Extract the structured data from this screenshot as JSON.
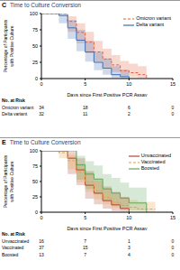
{
  "chart_data": [
    {
      "type": "step",
      "panel": "C",
      "title": "Time to Culture Conversion",
      "x_label": "Days since First Positive PCR Assay",
      "y_label": "Percentage of Participants with Positive Culture",
      "x": [
        0,
        1,
        2,
        3,
        4,
        5,
        6,
        7,
        8,
        9,
        10,
        11,
        12,
        13
      ],
      "xlim": [
        0,
        15
      ],
      "xticks": [
        0,
        5,
        10,
        15
      ],
      "ylim": [
        0,
        100
      ],
      "yticks": [
        0,
        25,
        50,
        75,
        100
      ],
      "legend": "upper right",
      "series": [
        {
          "name": "Omicron variant",
          "color": "#e2603f",
          "line_style": "dashed",
          "values": [
            100,
            100,
            100,
            88,
            71,
            56,
            41,
            30,
            21,
            12,
            9,
            6,
            0,
            null
          ],
          "ci_lower": [
            100,
            100,
            100,
            72,
            54,
            39,
            26,
            17,
            10,
            4,
            2,
            1,
            0,
            null
          ],
          "ci_upper": [
            100,
            100,
            100,
            96,
            85,
            72,
            58,
            46,
            36,
            27,
            23,
            19,
            14,
            null
          ]
        },
        {
          "name": "Delta variant",
          "color": "#3f6fb5",
          "line_style": "solid",
          "values": [
            100,
            100,
            97,
            78,
            59,
            41,
            25,
            16,
            6,
            3,
            0,
            null,
            null,
            null
          ],
          "ci_lower": [
            100,
            100,
            85,
            61,
            42,
            26,
            13,
            6,
            1,
            0,
            0,
            null,
            null,
            null
          ],
          "ci_upper": [
            100,
            100,
            100,
            90,
            75,
            58,
            41,
            31,
            19,
            14,
            0,
            null,
            null,
            null
          ]
        }
      ],
      "at_risk": {
        "title": "No. at Risk",
        "times": [
          0,
          5,
          10,
          15
        ],
        "rows": [
          {
            "name": "Omicron variant",
            "values": [
              34,
              18,
              6,
              0
            ]
          },
          {
            "name": "Delta variant",
            "values": [
              32,
              11,
              2,
              0
            ]
          }
        ]
      }
    },
    {
      "type": "step",
      "panel": "E",
      "title": "Time to Culture Conversion",
      "x_label": "Days since First Positive PCR Assay",
      "y_label": "Percentage of Participants with Positive Culture",
      "x": [
        0,
        1,
        2,
        3,
        4,
        5,
        6,
        7,
        8,
        9,
        10,
        11,
        12,
        13
      ],
      "xlim": [
        0,
        15
      ],
      "xticks": [
        0,
        5,
        10,
        15
      ],
      "ylim": [
        0,
        100
      ],
      "yticks": [
        0,
        25,
        50,
        75,
        100
      ],
      "legend": "upper right",
      "series": [
        {
          "name": "Unvaccinated",
          "color": "#b5452f",
          "line_style": "solid",
          "values": [
            100,
            100,
            100,
            88,
            69,
            44,
            31,
            19,
            12,
            6,
            0,
            null,
            null,
            null
          ],
          "ci_lower": [
            100,
            100,
            100,
            62,
            44,
            22,
            13,
            6,
            2,
            1,
            0,
            null,
            null,
            null
          ],
          "ci_upper": [
            100,
            100,
            100,
            98,
            88,
            67,
            54,
            42,
            33,
            25,
            0,
            null,
            null,
            null
          ]
        },
        {
          "name": "Vaccinated",
          "color": "#e8a040",
          "line_style": "dashed",
          "values": [
            100,
            100,
            97,
            84,
            65,
            49,
            35,
            24,
            16,
            11,
            8,
            5,
            5,
            5
          ],
          "ci_lower": [
            100,
            100,
            88,
            70,
            49,
            33,
            21,
            13,
            7,
            4,
            2,
            1,
            1,
            1
          ],
          "ci_upper": [
            100,
            100,
            100,
            93,
            79,
            65,
            51,
            39,
            30,
            24,
            20,
            17,
            17,
            17
          ]
        },
        {
          "name": "Boosted",
          "color": "#5ea85a",
          "line_style": "solid",
          "values": [
            100,
            100,
            100,
            100,
            77,
            62,
            54,
            38,
            31,
            23,
            15,
            15,
            0,
            null
          ],
          "ci_lower": [
            100,
            100,
            100,
            100,
            53,
            38,
            29,
            17,
            11,
            6,
            3,
            3,
            0,
            null
          ],
          "ci_upper": [
            100,
            100,
            100,
            100,
            92,
            83,
            76,
            62,
            56,
            48,
            40,
            40,
            0,
            null
          ]
        }
      ],
      "at_risk": {
        "title": "No. at Risk",
        "times": [
          0,
          5,
          10,
          15
        ],
        "rows": [
          {
            "name": "Unvaccinated",
            "values": [
              16,
              7,
              1,
              0
            ]
          },
          {
            "name": "Vaccinated",
            "values": [
              37,
              15,
              3,
              0
            ]
          },
          {
            "name": "Boosted",
            "values": [
              13,
              7,
              4,
              0
            ]
          }
        ]
      }
    }
  ]
}
